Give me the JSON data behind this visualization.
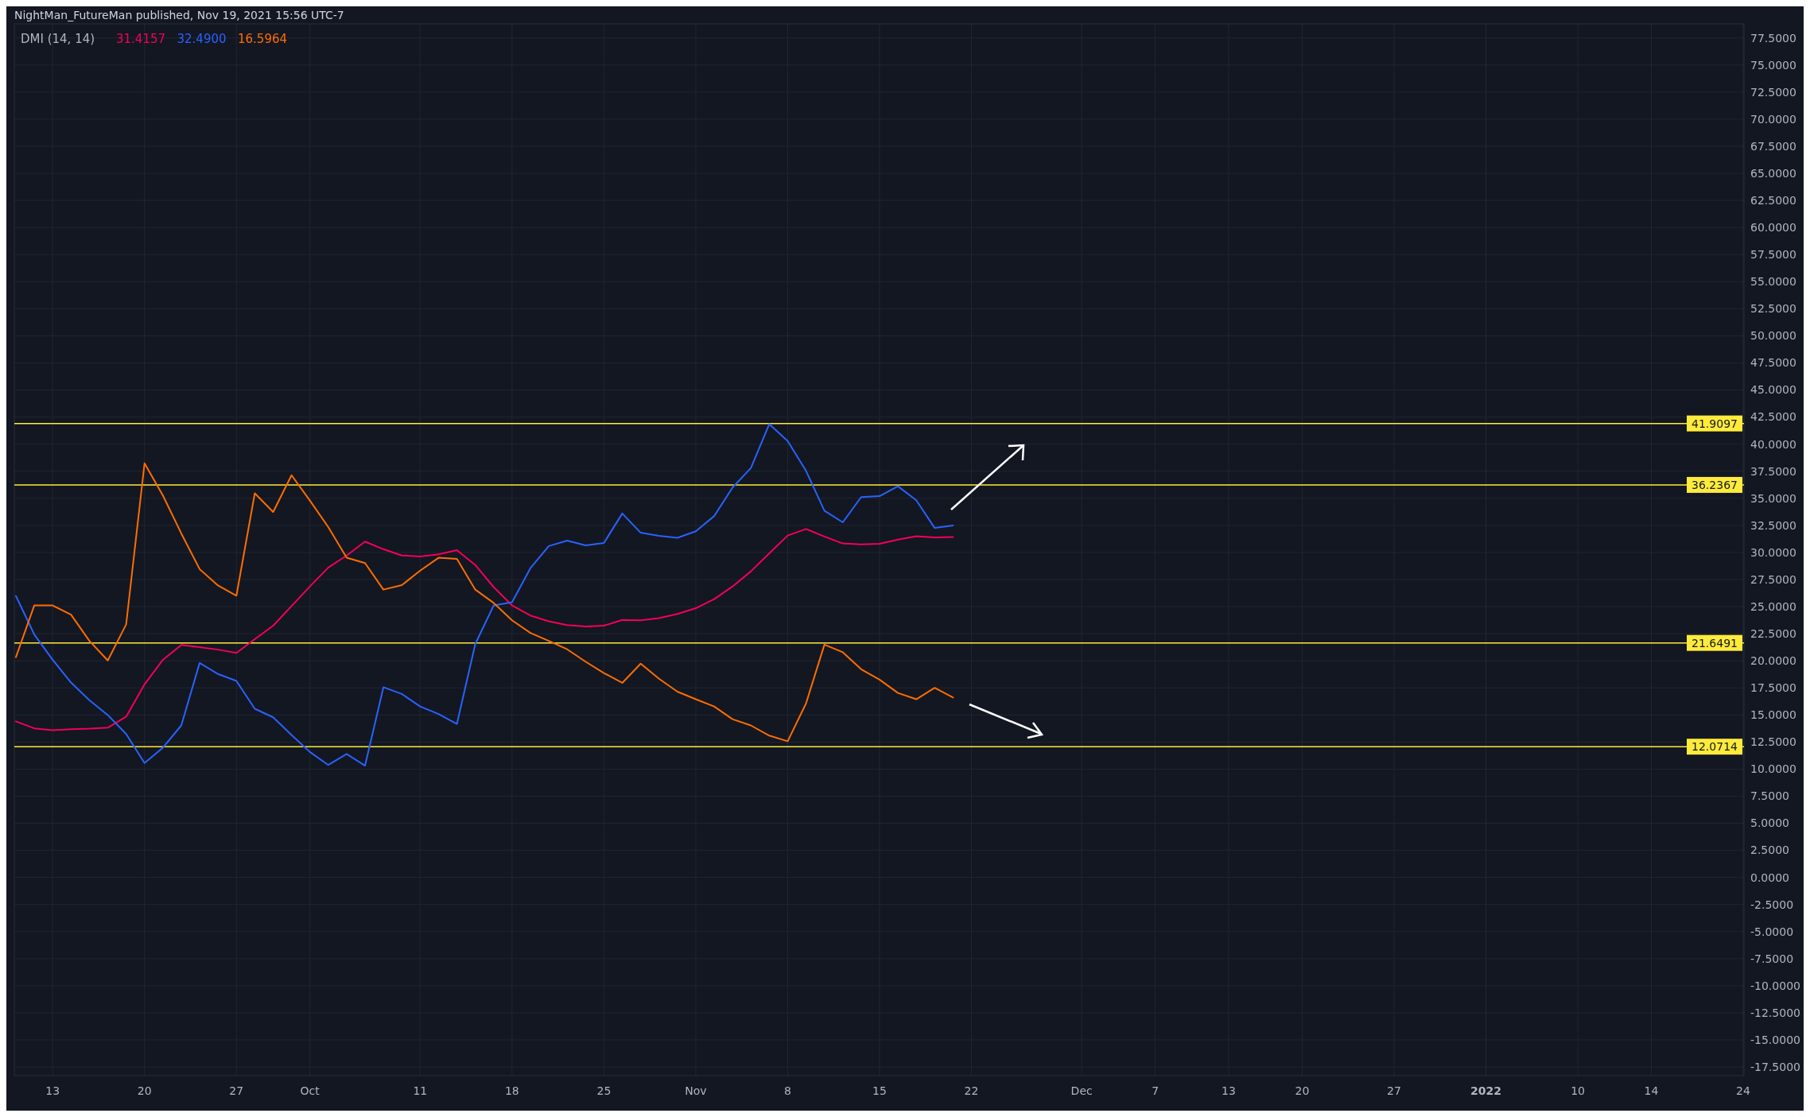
{
  "chart_data": {
    "type": "line",
    "title": "NightMan_FutureMan published, Nov 19, 2021 15:56 UTC-7",
    "legend_title": "DMI (14, 14)",
    "legend": "top left",
    "grid": true,
    "categories": [
      null,
      null,
      "13",
      null,
      null,
      null,
      null,
      "20",
      null,
      null,
      null,
      null,
      "27",
      null,
      null,
      null,
      "Oct",
      null,
      null,
      null,
      null,
      null,
      "11",
      null,
      null,
      null,
      null,
      "18",
      null,
      null,
      null,
      null,
      "25",
      null,
      null,
      null,
      null,
      "Nov",
      null,
      null,
      null,
      null,
      "8",
      null,
      null,
      null,
      null,
      "15",
      null,
      null,
      null,
      null,
      "22",
      null,
      null,
      null,
      null,
      null,
      "Dec",
      null,
      null,
      null,
      "7",
      null,
      null,
      null,
      "13",
      null,
      null,
      null,
      "20",
      null,
      null,
      null,
      null,
      "27",
      null,
      null,
      null,
      null,
      "2022",
      null,
      null,
      null,
      null,
      "10",
      null,
      null,
      null,
      "14",
      null,
      null,
      null,
      null,
      "24"
    ],
    "series": [
      {
        "name": "31.4157",
        "color": "#f50057",
        "values": [
          14.41,
          13.76,
          13.59,
          13.68,
          13.73,
          13.82,
          14.84,
          17.82,
          20.09,
          21.46,
          21.26,
          21.03,
          20.73,
          21.99,
          23.24,
          25.05,
          26.86,
          28.61,
          29.72,
          31.0,
          30.3,
          29.72,
          29.63,
          29.83,
          30.21,
          28.84,
          26.8,
          25.11,
          24.18,
          23.65,
          23.3,
          23.16,
          23.24,
          23.77,
          23.74,
          23.94,
          24.32,
          24.85,
          25.69,
          26.86,
          28.26,
          29.92,
          31.56,
          32.17,
          31.47,
          30.83,
          30.74,
          30.8,
          31.18,
          31.5,
          31.38,
          31.42,
          null,
          null,
          null,
          null,
          null,
          null,
          null,
          null,
          null,
          null,
          null,
          null,
          null,
          null,
          null,
          null,
          null,
          null,
          null,
          null,
          null,
          null,
          null,
          null,
          null,
          null,
          null,
          null,
          null,
          null,
          null,
          null,
          null,
          null,
          null,
          null,
          null,
          null,
          null,
          null,
          null,
          null,
          null
        ]
      },
      {
        "name": "32.4900",
        "color": "#2962ff",
        "values": [
          25.98,
          22.43,
          20.09,
          17.99,
          16.36,
          14.99,
          13.24,
          10.56,
          11.98,
          14.03,
          19.8,
          18.78,
          18.14,
          15.57,
          14.78,
          13.15,
          11.58,
          10.38,
          11.4,
          10.32,
          17.56,
          16.94,
          15.78,
          15.08,
          14.17,
          21.55,
          25.11,
          25.4,
          28.55,
          30.59,
          31.09,
          30.65,
          30.88,
          33.6,
          31.82,
          31.53,
          31.35,
          31.96,
          33.36,
          35.99,
          37.8,
          41.85,
          40.28,
          37.53,
          33.86,
          32.78,
          35.11,
          35.2,
          36.11,
          34.82,
          32.26,
          32.49,
          null,
          null,
          null,
          null,
          null,
          null,
          null,
          null,
          null,
          null,
          null,
          null,
          null,
          null,
          null,
          null,
          null,
          null,
          null,
          null,
          null,
          null,
          null,
          null,
          null,
          null,
          null,
          null,
          null,
          null,
          null,
          null,
          null,
          null,
          null,
          null,
          null,
          null,
          null,
          null,
          null,
          null,
          null
        ]
      },
      {
        "name": "16.5964",
        "color": "#ff6d00",
        "values": [
          20.33,
          25.11,
          25.11,
          24.26,
          21.84,
          20.03,
          23.36,
          38.23,
          35.26,
          31.76,
          28.46,
          26.95,
          26.01,
          35.46,
          33.74,
          37.13,
          34.79,
          32.34,
          29.51,
          29.02,
          26.57,
          26.98,
          28.32,
          29.51,
          29.4,
          26.57,
          25.34,
          23.74,
          22.57,
          21.84,
          21.06,
          19.92,
          18.87,
          17.96,
          19.74,
          18.34,
          17.15,
          16.45,
          15.78,
          14.61,
          14.03,
          13.09,
          12.57,
          16.07,
          21.49,
          20.79,
          19.22,
          18.26,
          17.03,
          16.45,
          17.5,
          16.6,
          null,
          null,
          null,
          null,
          null,
          null,
          null,
          null,
          null,
          null,
          null,
          null,
          null,
          null,
          null,
          null,
          null,
          null,
          null,
          null,
          null,
          null,
          null,
          null,
          null,
          null,
          null,
          null,
          null,
          null,
          null,
          null,
          null,
          null,
          null,
          null,
          null,
          null,
          null,
          null,
          null,
          null,
          null
        ]
      }
    ],
    "ylim": [
      -18.3,
      78.8
    ],
    "yticks": [
      {
        "value": -17.5,
        "label": "-17.5000"
      },
      {
        "value": -15,
        "label": "-15.0000"
      },
      {
        "value": -12.5,
        "label": "-12.5000"
      },
      {
        "value": -10,
        "label": "-10.0000"
      },
      {
        "value": -7.5,
        "label": "-7.5000"
      },
      {
        "value": -5,
        "label": "-5.0000"
      },
      {
        "value": -2.5,
        "label": "-2.5000"
      },
      {
        "value": 0,
        "label": "0.0000"
      },
      {
        "value": 2.5,
        "label": "2.5000"
      },
      {
        "value": 5,
        "label": "5.0000"
      },
      {
        "value": 7.5,
        "label": "7.5000"
      },
      {
        "value": 10,
        "label": "10.0000"
      },
      {
        "value": 12.5,
        "label": "12.5000"
      },
      {
        "value": 15,
        "label": "15.0000"
      },
      {
        "value": 17.5,
        "label": "17.5000"
      },
      {
        "value": 20,
        "label": "20.0000"
      },
      {
        "value": 22.5,
        "label": "22.5000"
      },
      {
        "value": 25,
        "label": "25.0000"
      },
      {
        "value": 27.5,
        "label": "27.5000"
      },
      {
        "value": 30,
        "label": "30.0000"
      },
      {
        "value": 32.5,
        "label": "32.5000"
      },
      {
        "value": 35,
        "label": "35.0000"
      },
      {
        "value": 37.5,
        "label": "37.5000"
      },
      {
        "value": 40,
        "label": "40.0000"
      },
      {
        "value": 42.5,
        "label": "42.5000"
      },
      {
        "value": 45,
        "label": "45.0000"
      },
      {
        "value": 47.5,
        "label": "47.5000"
      },
      {
        "value": 50,
        "label": "50.0000"
      },
      {
        "value": 52.5,
        "label": "52.5000"
      },
      {
        "value": 55,
        "label": "55.0000"
      },
      {
        "value": 57.5,
        "label": "57.5000"
      },
      {
        "value": 60,
        "label": "60.0000"
      },
      {
        "value": 62.5,
        "label": "62.5000"
      },
      {
        "value": 65,
        "label": "65.0000"
      },
      {
        "value": 67.5,
        "label": "67.5000"
      },
      {
        "value": 70,
        "label": "70.0000"
      },
      {
        "value": 72.5,
        "label": "72.5000"
      },
      {
        "value": 75,
        "label": "75.0000"
      },
      {
        "value": 77.5,
        "label": "77.5000"
      }
    ],
    "ref_lines": [
      {
        "axis": "y",
        "value": 41.9097,
        "label": "41.9097",
        "color": "#ffeb3b"
      },
      {
        "axis": "y",
        "value": 36.2367,
        "label": "36.2367",
        "color": "#ffeb3b"
      },
      {
        "axis": "y",
        "value": 21.6491,
        "label": "21.6491",
        "color": "#ffeb3b"
      },
      {
        "axis": "y",
        "value": 12.0714,
        "label": "12.0714",
        "color": "#ffeb3b"
      }
    ]
  }
}
